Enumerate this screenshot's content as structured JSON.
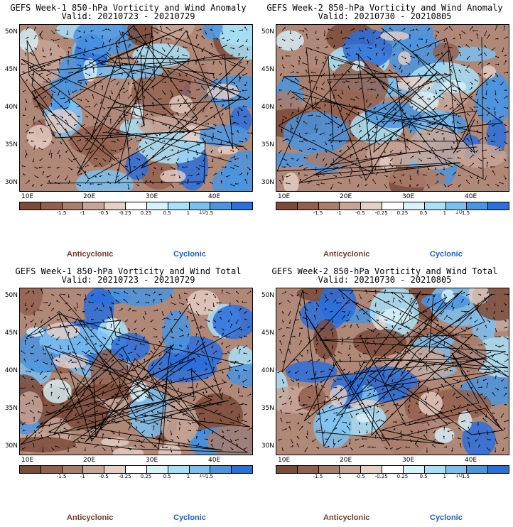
{
  "panels": [
    {
      "title_line1": "GEFS Week-1 850-hPa Vorticity and Wind Anomaly",
      "title_line2": "Valid: 20210723 - 20210729"
    },
    {
      "title_line1": "GEFS Week-2 850-hPa Vorticity and Wind Anomaly",
      "title_line2": "Valid: 20210730 - 20210805"
    },
    {
      "title_line1": "GEFS Week-1 850-hPa Vorticity and Wind Total",
      "title_line2": "Valid: 20210723 - 20210729"
    },
    {
      "title_line1": "GEFS Week-2 850-hPa Vorticity and Wind Total",
      "title_line2": "Valid: 20210730 - 20210805"
    }
  ],
  "lat_labels": [
    "50N",
    "45N",
    "40N",
    "35N",
    "30N"
  ],
  "lon_labels": [
    "10E",
    "20E",
    "30E",
    "40E"
  ],
  "colorbar": {
    "labels": [
      "-1.5",
      "-1",
      "-0.5",
      "-0.25",
      "0.25",
      "0.5",
      "1",
      "1.5"
    ],
    "scale_label": "10",
    "colors": [
      "#7b4b3a",
      "#93604f",
      "#a97d6b",
      "#c7a596",
      "#e6d0c6",
      "#ffffff",
      "#d8f2fa",
      "#a8e0f7",
      "#7cc0f0",
      "#4a94e0",
      "#2a6fdc"
    ]
  },
  "legend": {
    "anticyclonic": "Anticyclonic",
    "cyclonic": "Cyclonic"
  }
}
